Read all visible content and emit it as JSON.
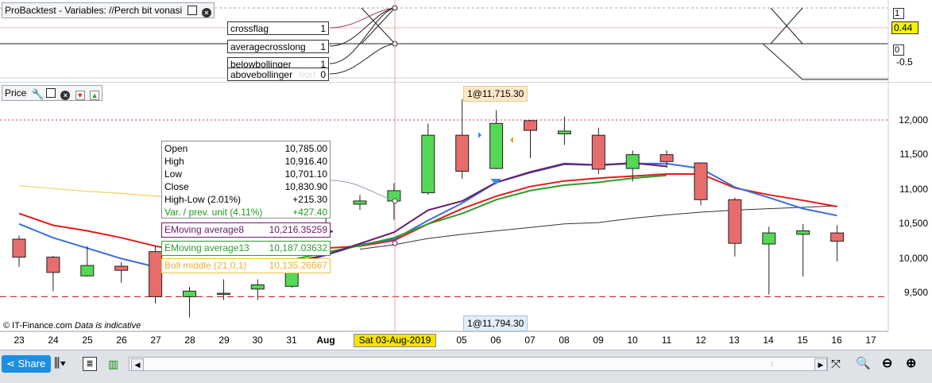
{
  "top_panel": {
    "title": "ProBacktest - Variables: //Perch bit vonasi",
    "variables": [
      {
        "name": "crossflag",
        "value": "1"
      },
      {
        "name": "averagecrosslong",
        "value": "1"
      },
      {
        "name": "belowbollinger",
        "value": "1"
      },
      {
        "name": "abovebollinger",
        "value": "0"
      }
    ],
    "ghost_text": "hort",
    "axis": [
      "1",
      "0.44",
      "0",
      "-0.5"
    ]
  },
  "price_panel": {
    "title": "Price",
    "info": {
      "rows": [
        {
          "name": "Open",
          "value": "10,785.00"
        },
        {
          "name": "High",
          "value": "10,916.40"
        },
        {
          "name": "Low",
          "value": "10,701.10"
        },
        {
          "name": "Close",
          "value": "10,830.90"
        },
        {
          "name": "High-Low (2.01%)",
          "value": "+215.30"
        },
        {
          "name": "Var. / prev. unit (4.11%)",
          "value": "+427.40"
        }
      ]
    },
    "indicators": [
      {
        "name": "EMoving average8",
        "value": "10,216.35259",
        "color": "#6a1a6a"
      },
      {
        "name": "EMoving average13",
        "value": "10,187.03632",
        "color": "#2aa02a"
      },
      {
        "name": "Boll middle (21,0,1)",
        "value": "10,135.26667",
        "color": "#f0b030"
      }
    ],
    "high_flag": "1@11,715.30",
    "low_flag": "1@11,794.30",
    "footer_source": "© IT-Finance.com",
    "footer_note": "Data is indicative",
    "price_axis": [
      "12,000",
      "11,500",
      "11,000",
      "10,500",
      "10,000",
      "9,500"
    ],
    "dates": [
      "23",
      "24",
      "25",
      "26",
      "27",
      "28",
      "29",
      "30",
      "31",
      "Aug",
      "Sat 03-Aug-2019",
      "05",
      "06",
      "07",
      "08",
      "09",
      "10",
      "11",
      "12",
      "13",
      "14",
      "15",
      "16",
      "17"
    ]
  },
  "chart_data": {
    "type": "candlestick",
    "ylim": [
      9000,
      12300
    ],
    "candles": [
      {
        "x": "23",
        "open": 10280,
        "high": 10330,
        "low": 9880,
        "close": 10020
      },
      {
        "x": "24",
        "open": 10020,
        "high": 10040,
        "low": 9530,
        "close": 9800
      },
      {
        "x": "25",
        "open": 9750,
        "high": 10180,
        "low": 9740,
        "close": 9900
      },
      {
        "x": "26",
        "open": 9890,
        "high": 9950,
        "low": 9650,
        "close": 9830
      },
      {
        "x": "27",
        "open": 10100,
        "high": 10180,
        "low": 9350,
        "close": 9450
      },
      {
        "x": "28",
        "open": 9450,
        "high": 9590,
        "low": 9150,
        "close": 9530
      },
      {
        "x": "29",
        "open": 9500,
        "high": 9700,
        "low": 9400,
        "close": 9500
      },
      {
        "x": "30",
        "open": 9560,
        "high": 9700,
        "low": 9400,
        "close": 9620
      },
      {
        "x": "31",
        "open": 9600,
        "high": 9850,
        "low": 9580,
        "close": 9820
      },
      {
        "x": "Aug",
        "open": 10400,
        "high": 10660,
        "low": 10340,
        "close": 10400
      },
      {
        "x": "Sat 03-Aug-2019",
        "open": 10785,
        "high": 10916,
        "low": 10701,
        "close": 10831
      },
      {
        "x": "05",
        "open": 10830,
        "high": 11090,
        "low": 10560,
        "close": 10980
      },
      {
        "x": "06",
        "open": 10950,
        "high": 11950,
        "low": 10920,
        "close": 11780
      },
      {
        "x": "07",
        "open": 11780,
        "high": 12300,
        "low": 11150,
        "close": 11260
      },
      {
        "x": "08",
        "open": 11300,
        "high": 12140,
        "low": 11290,
        "close": 11950
      },
      {
        "x": "09",
        "open": 11990,
        "high": 12000,
        "low": 11450,
        "close": 11850
      },
      {
        "x": "10",
        "open": 11800,
        "high": 12050,
        "low": 11640,
        "close": 11840
      },
      {
        "x": "11",
        "open": 11780,
        "high": 11890,
        "low": 11220,
        "close": 11290
      },
      {
        "x": "12",
        "open": 11300,
        "high": 11560,
        "low": 11110,
        "close": 11500
      },
      {
        "x": "13",
        "open": 11500,
        "high": 11560,
        "low": 11310,
        "close": 11400
      },
      {
        "x": "14",
        "open": 11380,
        "high": 11390,
        "low": 10770,
        "close": 10850
      },
      {
        "x": "15",
        "open": 10850,
        "high": 10880,
        "low": 10030,
        "close": 10220
      },
      {
        "x": "16",
        "open": 10210,
        "high": 10460,
        "low": 9480,
        "close": 10370
      },
      {
        "x": "17",
        "open": 10350,
        "high": 10500,
        "low": 9740,
        "close": 10400
      },
      {
        "x": "17b",
        "open": 10370,
        "high": 10480,
        "low": 9960,
        "close": 10250
      }
    ],
    "red_line": [
      10650,
      10480,
      10400,
      10300,
      10180,
      10090,
      10050,
      10070,
      10120,
      10150,
      10180,
      10260,
      10500,
      10720,
      10900,
      11040,
      11120,
      11160,
      11190,
      11220,
      11220,
      11020,
      10920,
      10840,
      10750
    ],
    "blue_line": [
      10500,
      10300,
      10150,
      10000,
      9880,
      9820,
      9800,
      9830,
      9900,
      10050,
      10200,
      10280,
      10550,
      10800,
      11100,
      11240,
      11360,
      11350,
      11370,
      11370,
      11300,
      11030,
      10880,
      10720,
      10620
    ],
    "green_line": [
      null,
      null,
      null,
      null,
      null,
      null,
      null,
      null,
      9980,
      10090,
      10187,
      10300,
      10500,
      10650,
      10850,
      10980,
      11060,
      11100,
      11160,
      11200,
      null,
      null,
      null,
      null,
      null
    ],
    "purple_line": [
      null,
      null,
      null,
      null,
      null,
      null,
      null,
      null,
      9950,
      10050,
      10216,
      10380,
      10700,
      10830,
      11100,
      11250,
      11370,
      11350,
      11380,
      11330,
      null,
      null,
      null,
      null,
      null
    ],
    "gray_line": [
      null,
      null,
      null,
      null,
      null,
      null,
      null,
      null,
      null,
      null,
      10135,
      10200,
      10290,
      10350,
      10400,
      10450,
      10500,
      10520,
      10580,
      10630,
      10670,
      10700,
      10720,
      10740,
      10760
    ],
    "yellow_line": [
      11050,
      11010,
      10970,
      10940,
      10900,
      10880,
      10860,
      10840,
      10820,
      null,
      null,
      null,
      null,
      null,
      null,
      null,
      null,
      null,
      null,
      null,
      null,
      null,
      null,
      null,
      null
    ],
    "hline_solid": 12000,
    "hline_dashed": 9450,
    "colors": {
      "up": "#55d855",
      "down": "#e76d6d",
      "red": "#e21c1c",
      "blue": "#3a6ee0",
      "green": "#2aa02a",
      "purple": "#6a1a6a",
      "gray": "#333333",
      "yellow": "#f0d060"
    }
  },
  "toolbar": {
    "share_label": "Share"
  }
}
